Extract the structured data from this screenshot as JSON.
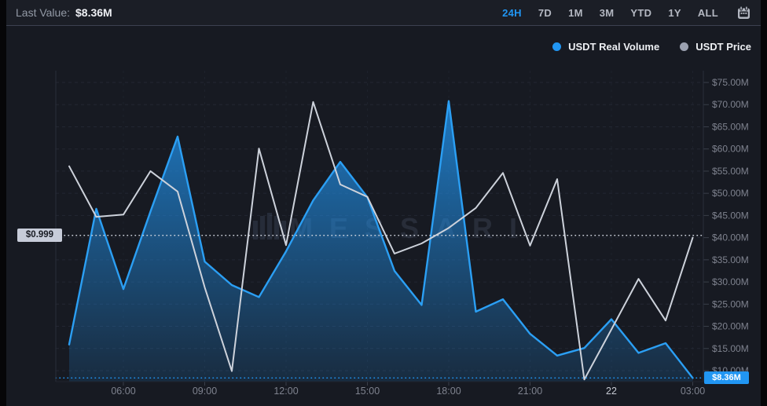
{
  "header": {
    "last_value_label": "Last Value:",
    "last_value": "$8.36M"
  },
  "ranges": [
    {
      "label": "24H",
      "active": true
    },
    {
      "label": "7D",
      "active": false
    },
    {
      "label": "1M",
      "active": false
    },
    {
      "label": "3M",
      "active": false
    },
    {
      "label": "YTD",
      "active": false
    },
    {
      "label": "1Y",
      "active": false
    },
    {
      "label": "ALL",
      "active": false
    }
  ],
  "icons": {
    "calendar": "calendar-icon"
  },
  "legend": {
    "position": "top-right",
    "items": [
      {
        "label": "USDT Real Volume",
        "color": "#2196F3"
      },
      {
        "label": "USDT Price",
        "color": "#9BA1B0"
      }
    ]
  },
  "watermark": {
    "text": "MESSARI"
  },
  "badges": {
    "price_last": "$0.999",
    "volume_last": "$8.36M"
  },
  "chart_data": {
    "type": "area",
    "subtype": "dual-axis combo: blue gradient area (volume, right axis) + gray line (price, hidden axis)",
    "title": "",
    "xlabel": "",
    "ylabel": "",
    "x": [
      "04:00",
      "05:00",
      "06:00",
      "07:00",
      "08:00",
      "09:00",
      "10:00",
      "11:00",
      "12:00",
      "13:00",
      "14:00",
      "15:00",
      "16:00",
      "17:00",
      "18:00",
      "19:00",
      "20:00",
      "21:00",
      "22:00",
      "23:00",
      "00:00",
      "01:00",
      "02:00",
      "03:00"
    ],
    "x_ticks": [
      {
        "index": 2,
        "label": "06:00",
        "emphasis": false
      },
      {
        "index": 5,
        "label": "09:00",
        "emphasis": false
      },
      {
        "index": 8,
        "label": "12:00",
        "emphasis": false
      },
      {
        "index": 11,
        "label": "15:00",
        "emphasis": false
      },
      {
        "index": 14,
        "label": "18:00",
        "emphasis": false
      },
      {
        "index": 17,
        "label": "21:00",
        "emphasis": false
      },
      {
        "index": 20,
        "label": "22",
        "emphasis": true
      },
      {
        "index": 23,
        "label": "03:00",
        "emphasis": false
      }
    ],
    "y_right_axis": {
      "unit": "USD millions",
      "tick_values": [
        75,
        70,
        65,
        60,
        55,
        50,
        45,
        40,
        35,
        30,
        25,
        20,
        15,
        10
      ],
      "tick_labels": [
        "$75.00M",
        "$70.00M",
        "$65.00M",
        "$60.00M",
        "$55.00M",
        "$50.00M",
        "$45.00M",
        "$40.00M",
        "$35.00M",
        "$30.00M",
        "$25.00M",
        "$20.00M",
        "$15.00M",
        "$10.00M"
      ],
      "plotted_range": [
        7.5,
        77.7
      ]
    },
    "grid": {
      "horizontal": "dashed",
      "vertical": "dashed at 3h ticks"
    },
    "series": [
      {
        "name": "USDT Real Volume",
        "type": "area",
        "color": "#2196F3",
        "axis": "right",
        "unit": "USD millions",
        "values": [
          15.9,
          46.5,
          28.4,
          45.9,
          62.8,
          34.6,
          29.3,
          26.6,
          36.9,
          48.4,
          57.1,
          49.1,
          32.5,
          24.8,
          70.8,
          23.3,
          26.1,
          18.3,
          13.4,
          15.1,
          21.6,
          14.0,
          16.2,
          8.36
        ]
      },
      {
        "name": "USDT Price",
        "type": "line",
        "color": "#CDD2DB",
        "axis": "hidden (price axis not labeled; last value marker shows $0.999)",
        "last_value_label": "$0.999",
        "values_right_axis_equivalent": [
          56.1,
          44.7,
          45.2,
          55.0,
          50.4,
          28.8,
          9.9,
          60.1,
          38.3,
          70.6,
          52.0,
          49.2,
          36.4,
          38.7,
          42.2,
          46.7,
          54.6,
          38.2,
          53.2,
          8.0,
          19.3,
          30.7,
          21.3,
          40.0
        ]
      }
    ],
    "reference_lines": [
      {
        "label": "$0.999",
        "series": "USDT Price",
        "style": "dotted",
        "color": "#D4D8E2",
        "right_axis_equivalent": 40.5
      },
      {
        "label": "$8.36M",
        "series": "USDT Real Volume",
        "style": "dotted",
        "color": "#2196F3",
        "value": 8.36
      }
    ],
    "legend_position": "top-right"
  }
}
